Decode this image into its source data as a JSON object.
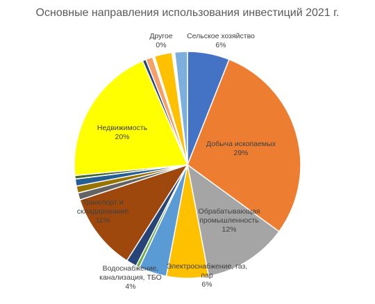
{
  "chart_data": {
    "type": "pie",
    "title": "Основные направления использования инвестиций 2021 г.",
    "categories": [
      "Сельское хозяйство",
      "Добыча ископаемых",
      "Обрабатывающая промышленность",
      "Электроснабжение, газ, пар",
      "Водоснабжение, канализация, ТБО",
      null,
      null,
      "Транспорт и складирование",
      null,
      null,
      null,
      null,
      "Недвижимость",
      null,
      null,
      "Другое",
      null,
      null,
      null
    ],
    "values": [
      6,
      29,
      12,
      6,
      4,
      0.5,
      1.5,
      11,
      1,
      1,
      1,
      0.5,
      20,
      0.5,
      1,
      0.3,
      2.5,
      0.4,
      1.8
    ],
    "value_labels": [
      "6%",
      "29%",
      "12%",
      "6%",
      "4%",
      null,
      null,
      "11%",
      null,
      null,
      null,
      null,
      "20%",
      null,
      null,
      "0%",
      null,
      null,
      null
    ],
    "colors": [
      "#4472c4",
      "#ed7d31",
      "#a5a5a5",
      "#ffc000",
      "#5b9bd5",
      "#70ad47",
      "#264478",
      "#9e480e",
      "#636363",
      "#997300",
      "#255e91",
      "#43682b",
      "#ffff00",
      "#264478",
      "#f4a06a",
      "#ffffff",
      "#ffc000",
      "#ffffff",
      "#7cafdd"
    ]
  }
}
